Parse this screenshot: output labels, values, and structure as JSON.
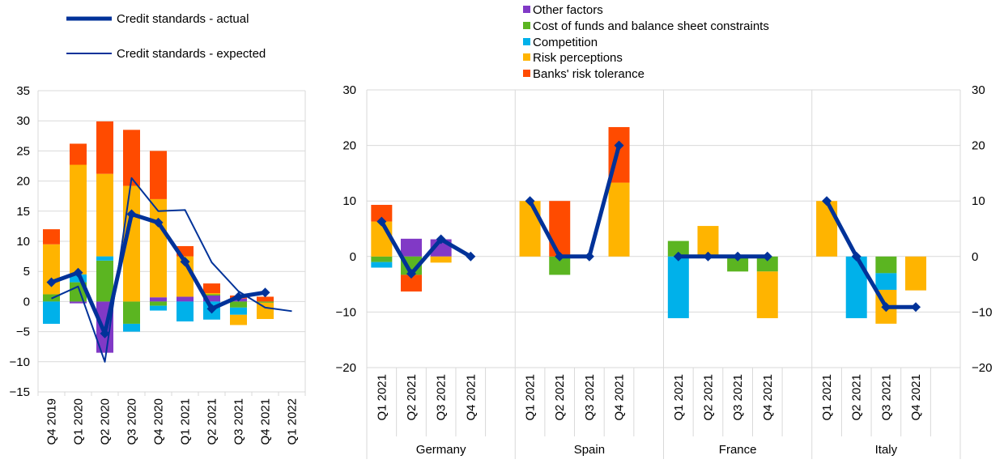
{
  "legend": {
    "line_items": [
      {
        "label": "Credit standards - actual",
        "color": "#003299"
      },
      {
        "label": "Credit standards - expected",
        "color": "#003299"
      }
    ],
    "bar_items": [
      {
        "label": "Other factors",
        "color": "#8139C6"
      },
      {
        "label": "Cost of funds and balance sheet constraints",
        "color": "#5BB521"
      },
      {
        "label": "Competition",
        "color": "#00B1EA"
      },
      {
        "label": "Risk perceptions",
        "color": "#FFB400"
      },
      {
        "label": "Banks' risk tolerance",
        "color": "#FF4B00"
      }
    ]
  },
  "chart_data": [
    {
      "type": "bar",
      "stacked": true,
      "title": "",
      "xlabel": "",
      "ylabel": "",
      "ylim": [
        -15,
        35
      ],
      "yticks": [
        -15,
        -10,
        -5,
        0,
        5,
        10,
        15,
        20,
        25,
        30,
        35
      ],
      "grid": true,
      "categories": [
        "Q4 2019",
        "Q1 2020",
        "Q2 2020",
        "Q3 2020",
        "Q4 2020",
        "Q1 2021",
        "Q2 2021",
        "Q3 2021",
        "Q4 2021",
        "Q1 2022"
      ],
      "series": [
        {
          "name": "Other factors",
          "color": "#8139C6",
          "values": [
            0,
            -0.3,
            -8.5,
            0,
            0.7,
            0.8,
            1.0,
            0.5,
            0,
            null
          ]
        },
        {
          "name": "Cost of funds and balance sheet constraints",
          "color": "#5BB521",
          "values": [
            1.2,
            3.2,
            6.8,
            -3.7,
            -0.7,
            0,
            0.2,
            -1.0,
            -0.2,
            null
          ]
        },
        {
          "name": "Competition",
          "color": "#00B1EA",
          "values": [
            -3.7,
            1.3,
            0.7,
            -1.3,
            -0.8,
            -3.3,
            -3.0,
            -1.2,
            0,
            null
          ]
        },
        {
          "name": "Risk perceptions",
          "color": "#FFB400",
          "values": [
            8.3,
            18.2,
            13.7,
            19.2,
            16.3,
            6.7,
            0.2,
            -1.7,
            -2.7,
            null
          ]
        },
        {
          "name": "Banks' risk tolerance",
          "color": "#FF4B00",
          "values": [
            2.5,
            3.5,
            8.7,
            9.3,
            8.0,
            1.7,
            1.6,
            0.5,
            0.8,
            null
          ]
        }
      ],
      "lines": [
        {
          "name": "Credit standards - actual",
          "values": [
            3.2,
            4.8,
            -5.3,
            14.5,
            13.1,
            6.6,
            -1.2,
            0.8,
            1.5,
            null
          ]
        },
        {
          "name": "Credit standards - expected",
          "values": [
            0.5,
            2.5,
            -10.0,
            20.5,
            15.0,
            15.2,
            6.5,
            1.7,
            -1.0,
            -1.6
          ]
        }
      ]
    },
    {
      "type": "bar",
      "stacked": true,
      "title": "",
      "xlabel": "",
      "ylabel": "",
      "ylim": [
        -20,
        30
      ],
      "yticks": [
        -20,
        -10,
        0,
        10,
        20,
        30
      ],
      "grid": true,
      "groups": [
        {
          "name": "Germany",
          "categories": [
            "Q1 2021",
            "Q2 2021",
            "Q3 2021",
            "Q4 2021"
          ],
          "series": [
            {
              "name": "Other factors",
              "values": [
                0,
                3.2,
                3.1,
                0
              ]
            },
            {
              "name": "Cost of funds and balance sheet constraints",
              "values": [
                -1.0,
                -3.3,
                0,
                0
              ]
            },
            {
              "name": "Competition",
              "values": [
                -1.0,
                0,
                0,
                0
              ]
            },
            {
              "name": "Risk perceptions",
              "values": [
                6.3,
                0,
                -1.1,
                0
              ]
            },
            {
              "name": "Banks' risk tolerance",
              "values": [
                3.0,
                -3.0,
                0,
                0
              ]
            }
          ],
          "actual": [
            6.3,
            -3.1,
            3.1,
            0
          ]
        },
        {
          "name": "Spain",
          "categories": [
            "Q1 2021",
            "Q2 2021",
            "Q3 2021",
            "Q4 2021"
          ],
          "series": [
            {
              "name": "Other factors",
              "values": [
                0,
                0,
                0,
                0
              ]
            },
            {
              "name": "Cost of funds and balance sheet constraints",
              "values": [
                0,
                -3.3,
                0,
                0
              ]
            },
            {
              "name": "Competition",
              "values": [
                0,
                0,
                0,
                0
              ]
            },
            {
              "name": "Risk perceptions",
              "values": [
                10.0,
                0,
                0,
                13.3
              ]
            },
            {
              "name": "Banks' risk tolerance",
              "values": [
                0,
                10.0,
                0,
                10.0
              ]
            }
          ],
          "actual": [
            10.0,
            0,
            0,
            20.0
          ]
        },
        {
          "name": "France",
          "categories": [
            "Q1 2021",
            "Q2 2021",
            "Q3 2021",
            "Q4 2021"
          ],
          "series": [
            {
              "name": "Other factors",
              "values": [
                0,
                0,
                0,
                0
              ]
            },
            {
              "name": "Cost of funds and balance sheet constraints",
              "values": [
                2.8,
                0,
                -2.7,
                -2.7
              ]
            },
            {
              "name": "Competition",
              "values": [
                -11.1,
                0,
                0,
                0
              ]
            },
            {
              "name": "Risk perceptions",
              "values": [
                0,
                5.5,
                0,
                -8.4
              ]
            },
            {
              "name": "Banks' risk tolerance",
              "values": [
                0,
                0,
                0,
                0
              ]
            }
          ],
          "actual": [
            0,
            0,
            0,
            0
          ]
        },
        {
          "name": "Italy",
          "categories": [
            "Q1 2021",
            "Q2 2021",
            "Q3 2021",
            "Q4 2021"
          ],
          "series": [
            {
              "name": "Other factors",
              "values": [
                0,
                0,
                0,
                0
              ]
            },
            {
              "name": "Cost of funds and balance sheet constraints",
              "values": [
                0,
                0,
                -3.0,
                0
              ]
            },
            {
              "name": "Competition",
              "values": [
                0,
                -11.1,
                -3.0,
                0
              ]
            },
            {
              "name": "Risk perceptions",
              "values": [
                10.0,
                0,
                -6.1,
                -6.1
              ]
            },
            {
              "name": "Banks' risk tolerance",
              "values": [
                0,
                0,
                0,
                0
              ]
            }
          ],
          "actual": [
            10.0,
            0,
            -9.1,
            -9.1
          ]
        }
      ]
    }
  ]
}
